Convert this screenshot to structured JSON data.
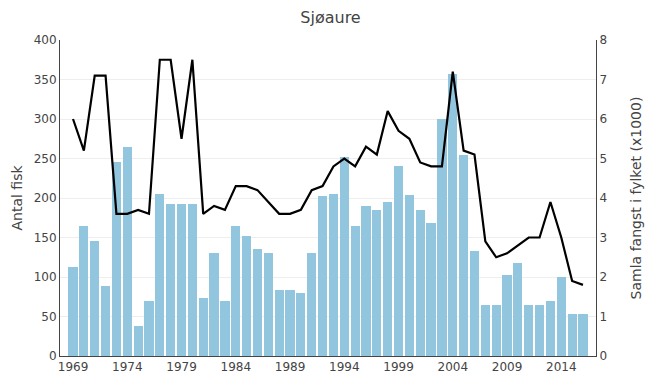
{
  "chart_data": {
    "type": "bar",
    "title": "Sjøaure",
    "ylabel": "Antal fisk",
    "y2label": "Samla fangst i fylket (x1000)",
    "x": [
      1969,
      1970,
      1971,
      1972,
      1973,
      1974,
      1975,
      1976,
      1977,
      1978,
      1979,
      1980,
      1981,
      1982,
      1983,
      1984,
      1985,
      1986,
      1987,
      1988,
      1989,
      1990,
      1991,
      1992,
      1993,
      1994,
      1995,
      1996,
      1997,
      1998,
      1999,
      2000,
      2001,
      2002,
      2003,
      2004,
      2005,
      2006,
      2007,
      2008,
      2009,
      2010,
      2011,
      2012,
      2013,
      2014,
      2015,
      2016
    ],
    "series": [
      {
        "type": "bar",
        "color": "#92C5DE",
        "values": [
          113,
          165,
          145,
          88,
          245,
          265,
          38,
          70,
          205,
          193,
          193,
          193,
          73,
          130,
          70,
          165,
          152,
          135,
          130,
          83,
          83,
          80,
          130,
          203,
          205,
          252,
          165,
          190,
          185,
          195,
          240,
          204,
          185,
          168,
          300,
          357,
          255,
          133,
          65,
          65,
          103,
          118,
          65,
          65,
          70,
          100,
          53,
          53
        ]
      },
      {
        "type": "line",
        "color": "#000000",
        "axis": "y2",
        "values": [
          6.0,
          5.2,
          7.1,
          7.1,
          3.6,
          3.6,
          3.7,
          3.6,
          7.5,
          7.5,
          5.5,
          7.5,
          3.6,
          3.8,
          3.7,
          4.3,
          4.3,
          4.2,
          3.9,
          3.6,
          3.6,
          3.7,
          4.2,
          4.3,
          4.8,
          5.0,
          4.8,
          5.3,
          5.1,
          6.2,
          5.7,
          5.5,
          4.9,
          4.8,
          4.8,
          7.2,
          5.2,
          5.1,
          2.9,
          2.5,
          2.6,
          2.8,
          3.0,
          3.0,
          3.9,
          3.0,
          1.9,
          1.8
        ]
      }
    ],
    "xlim": [
      1967.8,
      2017.2
    ],
    "xticks": [
      1969,
      1974,
      1979,
      1984,
      1989,
      1994,
      1999,
      2004,
      2009,
      2014
    ],
    "ylim": [
      0,
      400
    ],
    "yticks": [
      0,
      50,
      100,
      150,
      200,
      250,
      300,
      350,
      400
    ],
    "y2lim": [
      0,
      8
    ],
    "y2ticks": [
      0,
      1,
      2,
      3,
      4,
      5,
      6,
      7,
      8
    ],
    "grid": "y"
  }
}
